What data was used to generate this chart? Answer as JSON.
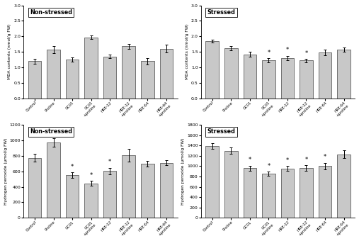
{
  "categories": [
    "Control",
    "Proline",
    "GC01",
    "GC01\n+proline",
    "HRE-12",
    "HRE-12\n+proline",
    "HRE-64",
    "HRE-64\n+proline"
  ],
  "mda_nonstressed": [
    1.2,
    1.57,
    1.25,
    1.97,
    1.35,
    1.68,
    1.2,
    1.6
  ],
  "mda_nonstressed_err": [
    0.08,
    0.12,
    0.07,
    0.06,
    0.06,
    0.08,
    0.1,
    0.12
  ],
  "mda_nonstressed_asterisk": [
    false,
    false,
    false,
    false,
    false,
    false,
    false,
    false
  ],
  "mda_stressed": [
    1.85,
    1.62,
    1.42,
    1.23,
    1.3,
    1.22,
    1.48,
    1.57
  ],
  "mda_stressed_err": [
    0.05,
    0.07,
    0.08,
    0.06,
    0.07,
    0.05,
    0.09,
    0.07
  ],
  "mda_stressed_asterisk": [
    false,
    false,
    false,
    true,
    true,
    true,
    false,
    false
  ],
  "h2o2_nonstressed": [
    775,
    975,
    550,
    445,
    605,
    810,
    695,
    710
  ],
  "h2o2_nonstressed_err": [
    50,
    55,
    38,
    32,
    42,
    80,
    38,
    33
  ],
  "h2o2_nonstressed_asterisk": [
    false,
    false,
    true,
    true,
    true,
    false,
    false,
    false
  ],
  "h2o2_stressed": [
    1390,
    1300,
    960,
    855,
    955,
    960,
    1000,
    1230
  ],
  "h2o2_stressed_err": [
    55,
    60,
    50,
    40,
    48,
    55,
    65,
    75
  ],
  "h2o2_stressed_asterisk": [
    false,
    false,
    true,
    true,
    true,
    true,
    true,
    false
  ],
  "bar_color": "#c8c8c8",
  "bar_edgecolor": "#444444",
  "mda_ylabel": "MDA contents (nmol/g FW)",
  "h2o2_ylabel": "Hydrogen peroxide (μmol/g FW)",
  "mda_ylim": [
    0.0,
    3.0
  ],
  "h2o2_nonstressed_ylim": [
    0,
    1200
  ],
  "h2o2_stressed_ylim": [
    0,
    1800
  ],
  "label_nonstressed": "Non-stressed",
  "label_stressed": "Stressed"
}
